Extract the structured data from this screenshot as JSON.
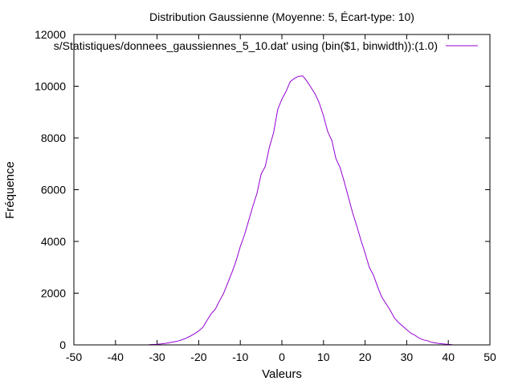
{
  "chart_data": {
    "type": "line",
    "title": "Distribution Gaussienne (Moyenne: 5, Écart-type: 10)",
    "xlabel": "Valeurs",
    "ylabel": "Fréquence",
    "xlim": [
      -50,
      50
    ],
    "ylim": [
      0,
      12000
    ],
    "x_ticks": [
      -50,
      -40,
      -30,
      -20,
      -10,
      0,
      10,
      20,
      30,
      40,
      50
    ],
    "y_ticks": [
      0,
      2000,
      4000,
      6000,
      8000,
      10000,
      12000
    ],
    "x_tick_labels": [
      "-50",
      "-40",
      "-30",
      "-20",
      "-10",
      "0",
      "10",
      "20",
      "30",
      "40",
      "50"
    ],
    "y_tick_labels": [
      "0",
      "2000",
      "4000",
      "6000",
      "8000",
      "10000",
      "12000"
    ],
    "grid": false,
    "legend_position": "top-right",
    "series": [
      {
        "name": "s/Statistiques/donnees_gaussiennes_5_10.dat' using (bin($1, binwidth)):(1.0)",
        "color": "#9400d3",
        "x": [
          -32,
          -31,
          -30,
          -29,
          -28,
          -27,
          -26,
          -25,
          -24,
          -23,
          -22,
          -21,
          -20,
          -19,
          -18,
          -17,
          -16,
          -15,
          -14,
          -13,
          -12,
          -11,
          -10,
          -9,
          -8,
          -7,
          -6,
          -5,
          -4,
          -3,
          -2,
          -1,
          0,
          1,
          2,
          3,
          4,
          5,
          6,
          7,
          8,
          9,
          10,
          11,
          12,
          13,
          14,
          15,
          16,
          17,
          18,
          19,
          20,
          21,
          22,
          23,
          24,
          25,
          26,
          27,
          28,
          29,
          30,
          31,
          32,
          33,
          34,
          35,
          36,
          37,
          38,
          39,
          40,
          41
        ],
        "y": [
          10,
          15,
          25,
          40,
          60,
          85,
          115,
          150,
          200,
          260,
          340,
          430,
          540,
          680,
          950,
          1200,
          1380,
          1700,
          2000,
          2400,
          2800,
          3250,
          3800,
          4250,
          4800,
          5350,
          5850,
          6600,
          6900,
          7650,
          8200,
          9100,
          9500,
          9800,
          10180,
          10300,
          10380,
          10400,
          10200,
          9950,
          9700,
          9350,
          8850,
          8250,
          7900,
          7200,
          6850,
          6300,
          5700,
          5100,
          4600,
          4050,
          3550,
          3000,
          2700,
          2250,
          1850,
          1600,
          1350,
          1050,
          870,
          730,
          590,
          450,
          370,
          260,
          195,
          160,
          100,
          75,
          50,
          35,
          20,
          10
        ]
      }
    ]
  }
}
